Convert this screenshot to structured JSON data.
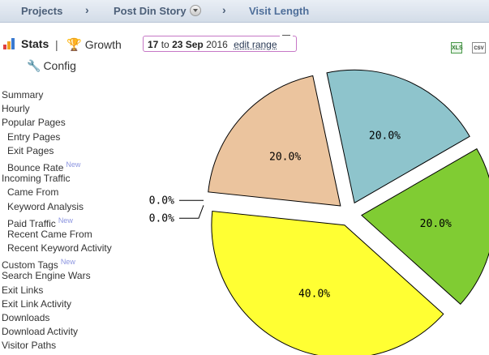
{
  "breadcrumb": {
    "items": [
      "Projects",
      "Post Din Story",
      "Visit Length"
    ]
  },
  "tabs": {
    "stats": "Stats",
    "separator": "|",
    "growth": "Growth",
    "config": "Config"
  },
  "date_range": {
    "start_day": "17",
    "to_word": "to",
    "end_day_month": "23 Sep",
    "year": "2016",
    "edit_label": "edit range"
  },
  "export": {
    "excel_label": "XLS",
    "csv_label": "CSV"
  },
  "sidebar": {
    "summary": "Summary",
    "hourly": "Hourly",
    "popular_pages": "Popular Pages",
    "entry_pages": "Entry Pages",
    "exit_pages": "Exit Pages",
    "bounce_rate": "Bounce Rate",
    "incoming_traffic": "Incoming Traffic",
    "came_from": "Came From",
    "keyword_analysis": "Keyword Analysis",
    "paid_traffic": "Paid Traffic",
    "recent_came_from": "Recent Came From",
    "recent_keyword_activity": "Recent Keyword Activity",
    "custom_tags": "Custom Tags",
    "search_engine_wars": "Search Engine Wars",
    "exit_links": "Exit Links",
    "exit_link_activity": "Exit Link Activity",
    "downloads": "Downloads",
    "download_activity": "Download Activity",
    "visitor_paths": "Visitor Paths",
    "new_badge": "New"
  },
  "chart_data": {
    "type": "pie",
    "start_angle_deg": 330,
    "slices": [
      {
        "value": 20.0,
        "label": "20.0%",
        "color": "#80cc33"
      },
      {
        "value": 40.0,
        "label": "40.0%",
        "color": "#ffff33"
      },
      {
        "value": 0.0,
        "label": "0.0%",
        "color": "#cccccc"
      },
      {
        "value": 0.0,
        "label": "0.0%",
        "color": "#cccccc"
      },
      {
        "value": 20.0,
        "label": "20.0%",
        "color": "#ebc49e"
      },
      {
        "value": 20.0,
        "label": "20.0%",
        "color": "#8ec4cc"
      }
    ]
  }
}
